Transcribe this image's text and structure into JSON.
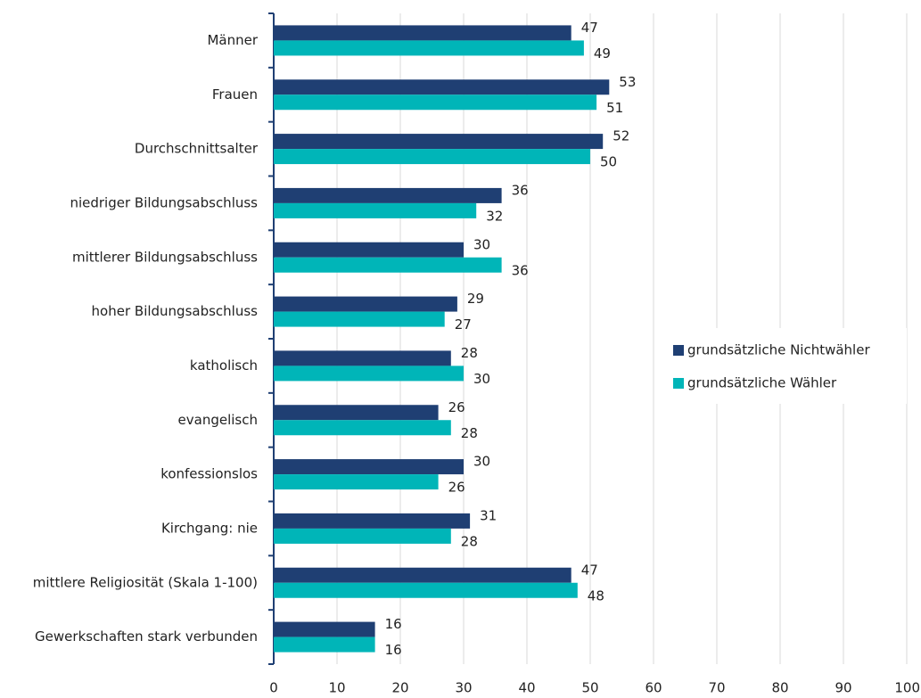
{
  "chart_data": {
    "type": "bar",
    "orientation": "horizontal",
    "categories": [
      "Männer",
      "Frauen",
      "Durchschnittsalter",
      "niedriger Bildungsabschluss",
      "mittlerer Bildungsabschluss",
      "hoher Bildungsabschluss",
      "katholisch",
      "evangelisch",
      "konfessionslos",
      "Kirchgang: nie",
      "mittlere Religiosität (Skala 1-100)",
      "Gewerkschaften stark verbunden"
    ],
    "series": [
      {
        "name": "grundsätzliche Nichtwähler",
        "color": "#1f3f73",
        "values": [
          47,
          53,
          52,
          36,
          30,
          29,
          28,
          26,
          30,
          31,
          47,
          16
        ]
      },
      {
        "name": "grundsätzliche Wähler",
        "color": "#00b5b8",
        "values": [
          49,
          51,
          50,
          32,
          36,
          27,
          30,
          28,
          26,
          28,
          48,
          16
        ]
      }
    ],
    "xlim": [
      0,
      100
    ],
    "xticks": [
      0,
      10,
      20,
      30,
      40,
      50,
      60,
      70,
      80,
      90,
      100
    ],
    "grid": true,
    "legend": "right"
  }
}
